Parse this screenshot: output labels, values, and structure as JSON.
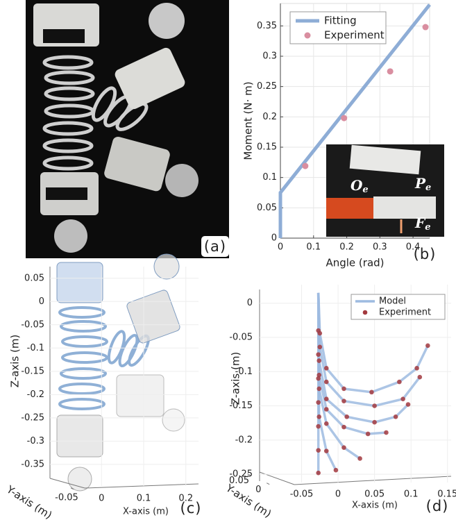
{
  "photo": {
    "label": "(a)"
  },
  "chart_data": [
    {
      "type": "line",
      "label": "(b)",
      "xlabel": "Angle (rad)",
      "ylabel": "Moment (N· m)",
      "xlim": [
        0,
        0.45
      ],
      "ylim": [
        0,
        0.387
      ],
      "xticks": [
        0,
        0.1,
        0.2,
        0.3,
        0.4
      ],
      "yticks": [
        0,
        0.05,
        0.1,
        0.15,
        0.2,
        0.25,
        0.3,
        0.35
      ],
      "grid": true,
      "legend": "upper left",
      "series": [
        {
          "name": "Fitting",
          "color": "#8eadd6",
          "style": "line",
          "x": [
            0,
            0,
            0.45
          ],
          "y": [
            0,
            0.075,
            0.385
          ]
        },
        {
          "name": "Experiment",
          "color": "#d98ea0",
          "style": "marker",
          "x": [
            0.075,
            0.192,
            0.331,
            0.4375
          ],
          "y": [
            0.119,
            0.198,
            0.275,
            0.348
          ]
        }
      ],
      "inset_labels": [
        {
          "main": "O",
          "sub": "e"
        },
        {
          "main": "P",
          "sub": "e"
        },
        {
          "main": "F",
          "sub": "e"
        }
      ]
    },
    {
      "type": "render3d",
      "label": "(c)",
      "xlabel": "X-axis (m)",
      "ylabel": "Y-axis (m)",
      "zlabel": "Z-axis (m)",
      "xlim": [
        -0.04,
        0.23
      ],
      "ylim": [
        -0.06,
        0.02
      ],
      "zlim": [
        -0.38,
        0.075
      ],
      "xticks": [
        0,
        0.1,
        0.2
      ],
      "yticks": [
        -0.05
      ],
      "zticks": [
        0.05,
        0,
        -0.05,
        -0.1,
        -0.15,
        -0.2,
        -0.25,
        -0.3,
        -0.35
      ]
    },
    {
      "type": "trajectory3d",
      "label": "(d)",
      "xlabel": "X-axis (m)",
      "ylabel": "Y-axis (m)",
      "zlabel": "Z-axis (m)",
      "xlim": [
        -0.06,
        0.155
      ],
      "ylim": [
        -0.005,
        0.06
      ],
      "zlim": [
        -0.26,
        0.02
      ],
      "xticks": [
        -0.05,
        0,
        0.05,
        0.1,
        0.15
      ],
      "yticks": [
        0,
        0.05
      ],
      "zticks": [
        0,
        -0.05,
        -0.1,
        -0.15,
        -0.2,
        -0.25
      ],
      "legend": "upper right",
      "series": [
        {
          "name": "Model",
          "color": "#9dbbe0",
          "curves": [
            {
              "x": [
                -0.027,
                -0.027
              ],
              "z": [
                0.015,
                -0.25
              ]
            },
            {
              "x": [
                -0.027,
                -0.025,
                -0.016,
                0.008,
                0.046,
                0.084,
                0.108,
                0.123
              ],
              "z": [
                0.015,
                -0.044,
                -0.095,
                -0.125,
                -0.13,
                -0.115,
                -0.095,
                -0.062
              ]
            },
            {
              "x": [
                -0.027,
                -0.025,
                -0.016,
                0.008,
                0.05,
                0.089,
                0.112
              ],
              "z": [
                0.015,
                -0.064,
                -0.115,
                -0.143,
                -0.15,
                -0.14,
                -0.108
              ]
            },
            {
              "x": [
                -0.027,
                -0.026,
                -0.016,
                0.012,
                0.05,
                0.079,
                0.096
              ],
              "z": [
                0.015,
                -0.084,
                -0.14,
                -0.166,
                -0.174,
                -0.166,
                -0.148
              ]
            },
            {
              "x": [
                -0.027,
                -0.026,
                -0.016,
                0.008,
                0.041,
                0.066
              ],
              "z": [
                0.015,
                -0.105,
                -0.155,
                -0.181,
                -0.191,
                -0.189
              ]
            },
            {
              "x": [
                -0.027,
                -0.026,
                -0.016,
                0.008,
                0.03
              ],
              "z": [
                0.015,
                -0.125,
                -0.176,
                -0.211,
                -0.227
              ]
            },
            {
              "x": [
                -0.027,
                -0.026,
                -0.016,
                -0.003
              ],
              "z": [
                0.015,
                -0.166,
                -0.216,
                -0.244
              ]
            }
          ]
        },
        {
          "name": "Experiment",
          "color": "#a33a3f",
          "x": [
            -0.025,
            -0.016,
            0.008,
            0.046,
            0.084,
            0.108,
            0.123,
            -0.025,
            -0.016,
            0.008,
            0.05,
            0.089,
            0.112,
            -0.026,
            -0.016,
            0.012,
            0.05,
            0.079,
            0.096,
            -0.026,
            -0.016,
            0.008,
            0.041,
            0.066,
            -0.026,
            -0.016,
            0.008,
            0.03,
            -0.026,
            -0.016,
            -0.003,
            -0.027,
            -0.027,
            -0.027,
            -0.027,
            -0.027,
            -0.027,
            -0.027
          ],
          "z": [
            -0.044,
            -0.095,
            -0.125,
            -0.13,
            -0.115,
            -0.095,
            -0.062,
            -0.064,
            -0.115,
            -0.143,
            -0.15,
            -0.14,
            -0.108,
            -0.084,
            -0.14,
            -0.166,
            -0.174,
            -0.166,
            -0.148,
            -0.105,
            -0.155,
            -0.181,
            -0.191,
            -0.189,
            -0.125,
            -0.176,
            -0.211,
            -0.227,
            -0.166,
            -0.216,
            -0.244,
            -0.04,
            -0.075,
            -0.11,
            -0.145,
            -0.18,
            -0.215,
            -0.248
          ]
        }
      ]
    }
  ]
}
